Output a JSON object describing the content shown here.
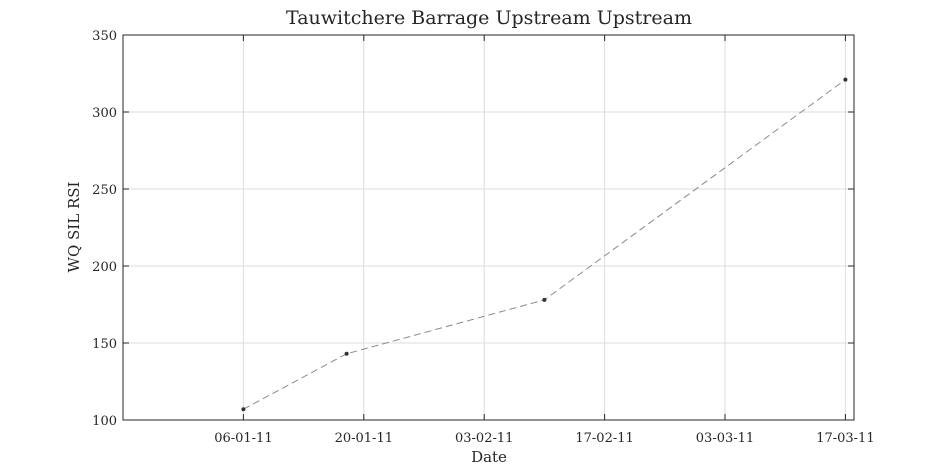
{
  "chart_data": {
    "type": "line",
    "title": "Tauwitchere Barrage Upstream Upstream",
    "xlabel": "Date",
    "ylabel": "WQ SIL RSI",
    "x": [
      "06-01-11",
      "18-01-11",
      "10-02-11",
      "17-03-11"
    ],
    "series": [
      {
        "values": [
          107,
          143,
          178,
          321
        ]
      }
    ],
    "xlim": [
      "23-12-10",
      "18-03-11"
    ],
    "ylim": [
      100,
      350
    ],
    "xticks": [
      "06-01-11",
      "20-01-11",
      "03-02-11",
      "17-02-11",
      "03-03-11",
      "17-03-11"
    ],
    "yticks": [
      100,
      150,
      200,
      250,
      300,
      350
    ],
    "grid": true,
    "line_color": "#8a8a8a",
    "marker_color": "#333333"
  }
}
